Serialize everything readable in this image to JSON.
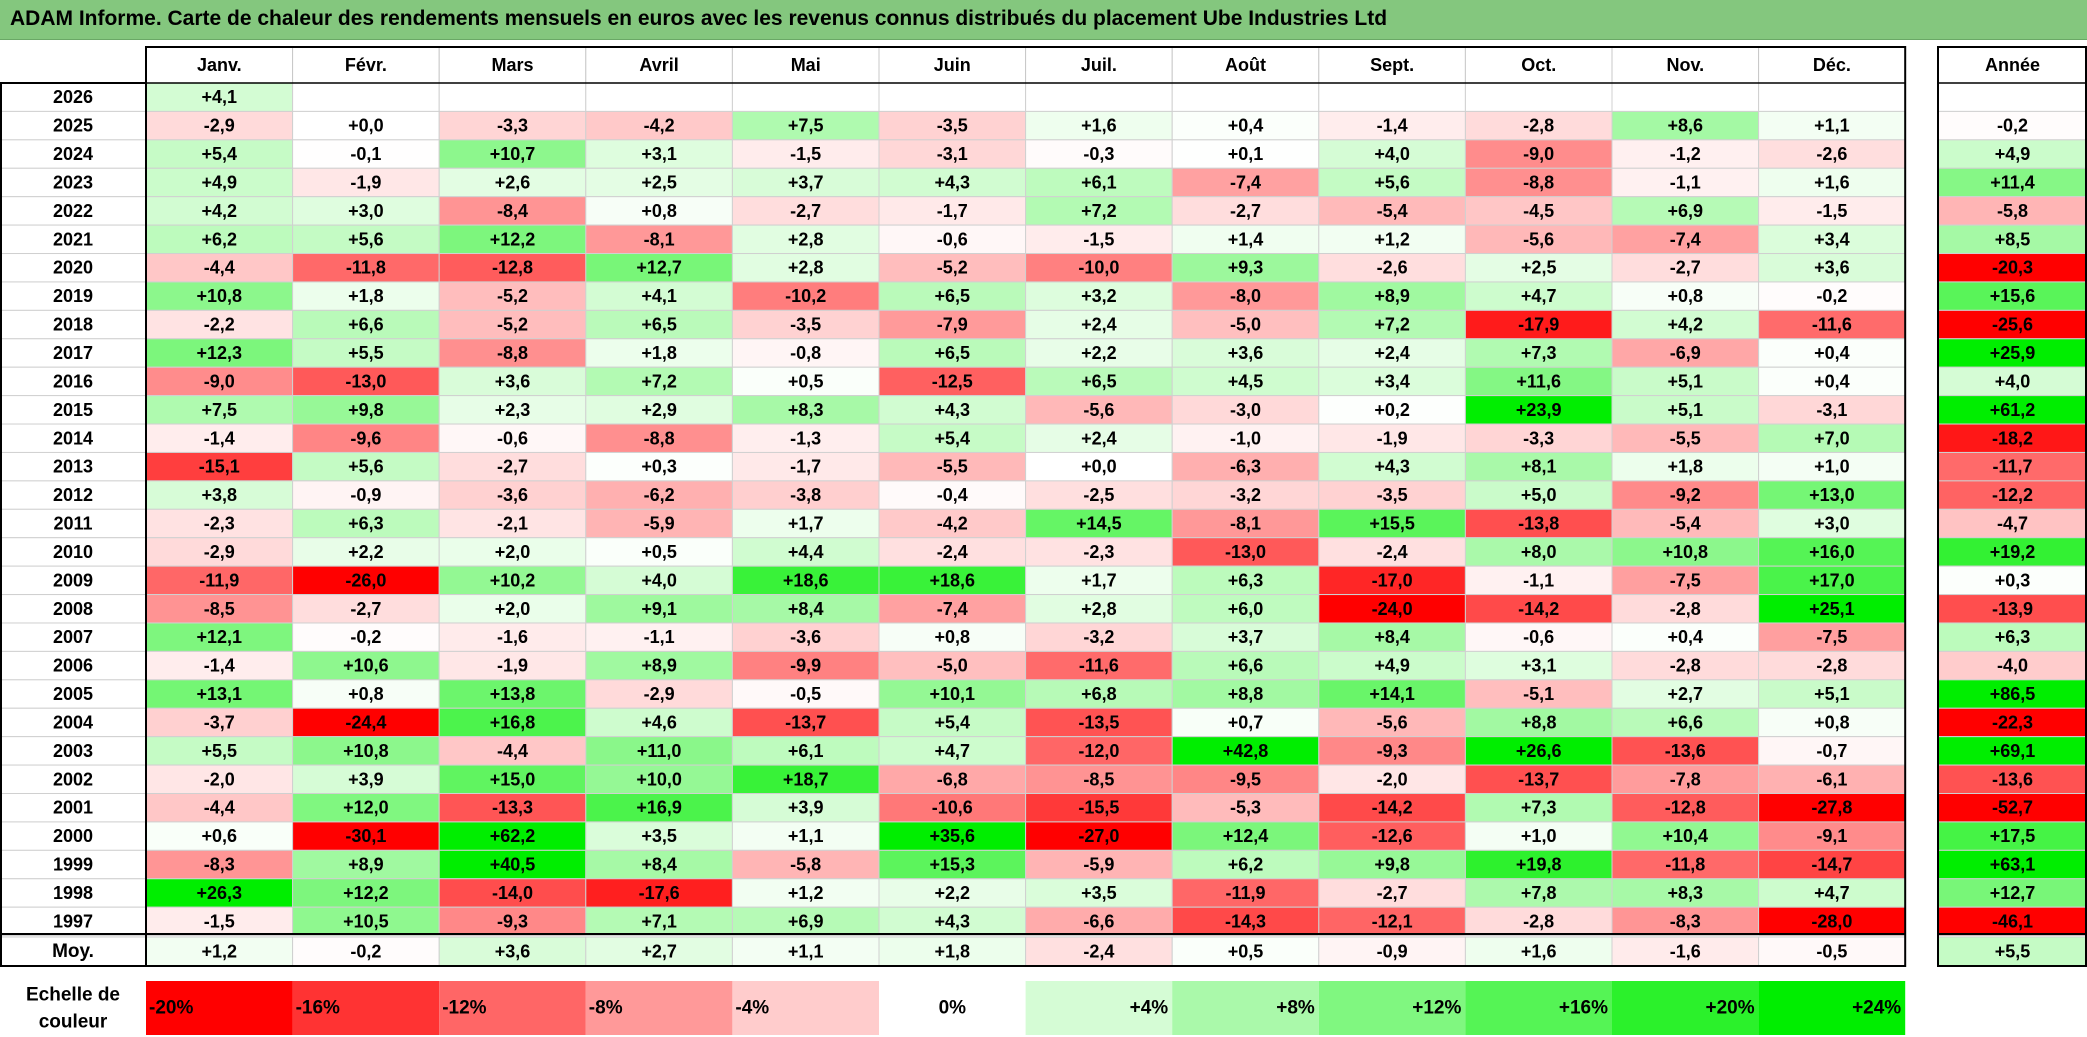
{
  "title": "ADAM Informe. Carte de chaleur des rendements mensuels en euros avec les revenus connus distribués du placement Ube Industries Ltd",
  "chart_data": {
    "type": "heatmap",
    "title": "ADAM Informe. Carte de chaleur des rendements mensuels en euros avec les revenus connus distribués du placement Ube Industries Ltd",
    "months": [
      "Janv.",
      "Févr.",
      "Mars",
      "Avril",
      "Mai",
      "Juin",
      "Juil.",
      "Août",
      "Sept.",
      "Oct.",
      "Nov.",
      "Déc."
    ],
    "year_header": "Année",
    "rows": [
      {
        "year": "2026",
        "values": [
          "+4,1",
          "",
          "",
          "",
          "",
          "",
          "",
          "",
          "",
          "",
          "",
          ""
        ],
        "annual": ""
      },
      {
        "year": "2025",
        "values": [
          "-2,9",
          "+0,0",
          "-3,3",
          "-4,2",
          "+7,5",
          "-3,5",
          "+1,6",
          "+0,4",
          "-1,4",
          "-2,8",
          "+8,6",
          "+1,1"
        ],
        "annual": "-0,2"
      },
      {
        "year": "2024",
        "values": [
          "+5,4",
          "-0,1",
          "+10,7",
          "+3,1",
          "-1,5",
          "-3,1",
          "-0,3",
          "+0,1",
          "+4,0",
          "-9,0",
          "-1,2",
          "-2,6"
        ],
        "annual": "+4,9"
      },
      {
        "year": "2023",
        "values": [
          "+4,9",
          "-1,9",
          "+2,6",
          "+2,5",
          "+3,7",
          "+4,3",
          "+6,1",
          "-7,4",
          "+5,6",
          "-8,8",
          "-1,1",
          "+1,6"
        ],
        "annual": "+11,4"
      },
      {
        "year": "2022",
        "values": [
          "+4,2",
          "+3,0",
          "-8,4",
          "+0,8",
          "-2,7",
          "-1,7",
          "+7,2",
          "-2,7",
          "-5,4",
          "-4,5",
          "+6,9",
          "-1,5"
        ],
        "annual": "-5,8"
      },
      {
        "year": "2021",
        "values": [
          "+6,2",
          "+5,6",
          "+12,2",
          "-8,1",
          "+2,8",
          "-0,6",
          "-1,5",
          "+1,4",
          "+1,2",
          "-5,6",
          "-7,4",
          "+3,4"
        ],
        "annual": "+8,5"
      },
      {
        "year": "2020",
        "values": [
          "-4,4",
          "-11,8",
          "-12,8",
          "+12,7",
          "+2,8",
          "-5,2",
          "-10,0",
          "+9,3",
          "-2,6",
          "+2,5",
          "-2,7",
          "+3,6"
        ],
        "annual": "-20,3"
      },
      {
        "year": "2019",
        "values": [
          "+10,8",
          "+1,8",
          "-5,2",
          "+4,1",
          "-10,2",
          "+6,5",
          "+3,2",
          "-8,0",
          "+8,9",
          "+4,7",
          "+0,8",
          "-0,2"
        ],
        "annual": "+15,6"
      },
      {
        "year": "2018",
        "values": [
          "-2,2",
          "+6,6",
          "-5,2",
          "+6,5",
          "-3,5",
          "-7,9",
          "+2,4",
          "-5,0",
          "+7,2",
          "-17,9",
          "+4,2",
          "-11,6"
        ],
        "annual": "-25,6"
      },
      {
        "year": "2017",
        "values": [
          "+12,3",
          "+5,5",
          "-8,8",
          "+1,8",
          "-0,8",
          "+6,5",
          "+2,2",
          "+3,6",
          "+2,4",
          "+7,3",
          "-6,9",
          "+0,4"
        ],
        "annual": "+25,9"
      },
      {
        "year": "2016",
        "values": [
          "-9,0",
          "-13,0",
          "+3,6",
          "+7,2",
          "+0,5",
          "-12,5",
          "+6,5",
          "+4,5",
          "+3,4",
          "+11,6",
          "+5,1",
          "+0,4"
        ],
        "annual": "+4,0"
      },
      {
        "year": "2015",
        "values": [
          "+7,5",
          "+9,8",
          "+2,3",
          "+2,9",
          "+8,3",
          "+4,3",
          "-5,6",
          "-3,0",
          "+0,2",
          "+23,9",
          "+5,1",
          "-3,1"
        ],
        "annual": "+61,2"
      },
      {
        "year": "2014",
        "values": [
          "-1,4",
          "-9,6",
          "-0,6",
          "-8,8",
          "-1,3",
          "+5,4",
          "+2,4",
          "-1,0",
          "-1,9",
          "-3,3",
          "-5,5",
          "+7,0"
        ],
        "annual": "-18,2"
      },
      {
        "year": "2013",
        "values": [
          "-15,1",
          "+5,6",
          "-2,7",
          "+0,3",
          "-1,7",
          "-5,5",
          "+0,0",
          "-6,3",
          "+4,3",
          "+8,1",
          "+1,8",
          "+1,0"
        ],
        "annual": "-11,7"
      },
      {
        "year": "2012",
        "values": [
          "+3,8",
          "-0,9",
          "-3,6",
          "-6,2",
          "-3,8",
          "-0,4",
          "-2,5",
          "-3,2",
          "-3,5",
          "+5,0",
          "-9,2",
          "+13,0"
        ],
        "annual": "-12,2"
      },
      {
        "year": "2011",
        "values": [
          "-2,3",
          "+6,3",
          "-2,1",
          "-5,9",
          "+1,7",
          "-4,2",
          "+14,5",
          "-8,1",
          "+15,5",
          "-13,8",
          "-5,4",
          "+3,0"
        ],
        "annual": "-4,7"
      },
      {
        "year": "2010",
        "values": [
          "-2,9",
          "+2,2",
          "+2,0",
          "+0,5",
          "+4,4",
          "-2,4",
          "-2,3",
          "-13,0",
          "-2,4",
          "+8,0",
          "+10,8",
          "+16,0"
        ],
        "annual": "+19,2"
      },
      {
        "year": "2009",
        "values": [
          "-11,9",
          "-26,0",
          "+10,2",
          "+4,0",
          "+18,6",
          "+18,6",
          "+1,7",
          "+6,3",
          "-17,0",
          "-1,1",
          "-7,5",
          "+17,0"
        ],
        "annual": "+0,3"
      },
      {
        "year": "2008",
        "values": [
          "-8,5",
          "-2,7",
          "+2,0",
          "+9,1",
          "+8,4",
          "-7,4",
          "+2,8",
          "+6,0",
          "-24,0",
          "-14,2",
          "-2,8",
          "+25,1"
        ],
        "annual": "-13,9"
      },
      {
        "year": "2007",
        "values": [
          "+12,1",
          "-0,2",
          "-1,6",
          "-1,1",
          "-3,6",
          "+0,8",
          "-3,2",
          "+3,7",
          "+8,4",
          "-0,6",
          "+0,4",
          "-7,5"
        ],
        "annual": "+6,3"
      },
      {
        "year": "2006",
        "values": [
          "-1,4",
          "+10,6",
          "-1,9",
          "+8,9",
          "-9,9",
          "-5,0",
          "-11,6",
          "+6,6",
          "+4,9",
          "+3,1",
          "-2,8",
          "-2,8"
        ],
        "annual": "-4,0"
      },
      {
        "year": "2005",
        "values": [
          "+13,1",
          "+0,8",
          "+13,8",
          "-2,9",
          "-0,5",
          "+10,1",
          "+6,8",
          "+8,8",
          "+14,1",
          "-5,1",
          "+2,7",
          "+5,1"
        ],
        "annual": "+86,5"
      },
      {
        "year": "2004",
        "values": [
          "-3,7",
          "-24,4",
          "+16,8",
          "+4,6",
          "-13,7",
          "+5,4",
          "-13,5",
          "+0,7",
          "-5,6",
          "+8,8",
          "+6,6",
          "+0,8"
        ],
        "annual": "-22,3"
      },
      {
        "year": "2003",
        "values": [
          "+5,5",
          "+10,8",
          "-4,4",
          "+11,0",
          "+6,1",
          "+4,7",
          "-12,0",
          "+42,8",
          "-9,3",
          "+26,6",
          "-13,6",
          "-0,7"
        ],
        "annual": "+69,1"
      },
      {
        "year": "2002",
        "values": [
          "-2,0",
          "+3,9",
          "+15,0",
          "+10,0",
          "+18,7",
          "-6,8",
          "-8,5",
          "-9,5",
          "-2,0",
          "-13,7",
          "-7,8",
          "-6,1"
        ],
        "annual": "-13,6"
      },
      {
        "year": "2001",
        "values": [
          "-4,4",
          "+12,0",
          "-13,3",
          "+16,9",
          "+3,9",
          "-10,6",
          "-15,5",
          "-5,3",
          "-14,2",
          "+7,3",
          "-12,8",
          "-27,8"
        ],
        "annual": "-52,7"
      },
      {
        "year": "2000",
        "values": [
          "+0,6",
          "-30,1",
          "+62,2",
          "+3,5",
          "+1,1",
          "+35,6",
          "-27,0",
          "+12,4",
          "-12,6",
          "+1,0",
          "+10,4",
          "-9,1"
        ],
        "annual": "+17,5"
      },
      {
        "year": "1999",
        "values": [
          "-8,3",
          "+8,9",
          "+40,5",
          "+8,4",
          "-5,8",
          "+15,3",
          "-5,9",
          "+6,2",
          "+9,8",
          "+19,8",
          "-11,8",
          "-14,7"
        ],
        "annual": "+63,1"
      },
      {
        "year": "1998",
        "values": [
          "+26,3",
          "+12,2",
          "-14,0",
          "-17,6",
          "+1,2",
          "+2,2",
          "+3,5",
          "-11,9",
          "-2,7",
          "+7,8",
          "+8,3",
          "+4,7"
        ],
        "annual": "+12,7"
      },
      {
        "year": "1997",
        "values": [
          "-1,5",
          "+10,5",
          "-9,3",
          "+7,1",
          "+6,9",
          "+4,3",
          "-6,6",
          "-14,3",
          "-12,1",
          "-2,8",
          "-8,3",
          "-28,0"
        ],
        "annual": "-46,1"
      }
    ],
    "average": {
      "label": "Moy.",
      "values": [
        "+1,2",
        "-0,2",
        "+3,6",
        "+2,7",
        "+1,1",
        "+1,8",
        "-2,4",
        "+0,5",
        "-0,9",
        "+1,6",
        "-1,6",
        "-0,5"
      ],
      "annual": "+5,5"
    },
    "scale": {
      "label_line1": "Echelle de",
      "label_line2": "couleur",
      "steps": [
        "-20%",
        "-16%",
        "-12%",
        "-8%",
        "-4%",
        "0%",
        "+4%",
        "+8%",
        "+12%",
        "+16%",
        "+20%",
        "+24%"
      ],
      "step_values": [
        -20,
        -16,
        -12,
        -8,
        -4,
        0,
        4,
        8,
        12,
        16,
        20,
        24
      ]
    },
    "colors": {
      "negative_max": "#ff0000",
      "zero": "#ffffff",
      "positive_max": "#00ee00",
      "title_background": "#84c77e"
    }
  }
}
